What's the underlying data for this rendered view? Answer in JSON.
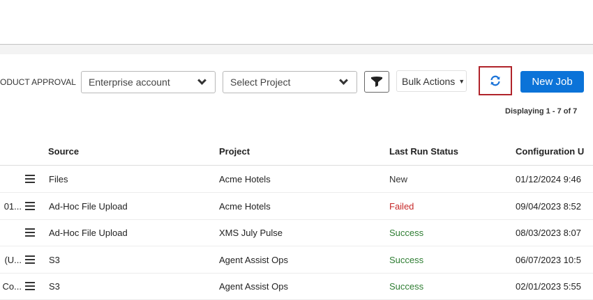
{
  "toolbar": {
    "context_label": "ODUCT APPROVAL",
    "account_select": "Enterprise account",
    "project_select": "Select Project",
    "filter_icon": "filter-icon",
    "bulk_actions": "Bulk Actions",
    "refresh_icon": "refresh-icon",
    "new_job": "New Job",
    "highlight_color": "#b0232a",
    "primary_color": "#0b73d8"
  },
  "displaying": "Displaying 1 - 7 of 7",
  "table": {
    "headers": [
      "Source",
      "Project",
      "Last Run Status",
      "Configuration U"
    ],
    "rows": [
      {
        "name": "",
        "source": "Files",
        "project": "Acme Hotels",
        "status": "New",
        "status_color": "#333333",
        "config": "01/12/2024 9:46"
      },
      {
        "name": "01...",
        "source": "Ad-Hoc File Upload",
        "project": "Acme Hotels",
        "status": "Failed",
        "status_color": "#c62828",
        "config": "09/04/2023 8:52"
      },
      {
        "name": "",
        "source": "Ad-Hoc File Upload",
        "project": "XMS July Pulse",
        "status": "Success",
        "status_color": "#2e7d32",
        "config": "08/03/2023 8:07"
      },
      {
        "name": "(U...",
        "source": "S3",
        "project": "Agent Assist Ops",
        "status": "Success",
        "status_color": "#2e7d32",
        "config": "06/07/2023 10:5"
      },
      {
        "name": "Co...",
        "source": "S3",
        "project": "Agent Assist Ops",
        "status": "Success",
        "status_color": "#2e7d32",
        "config": "02/01/2023 5:55"
      }
    ]
  }
}
